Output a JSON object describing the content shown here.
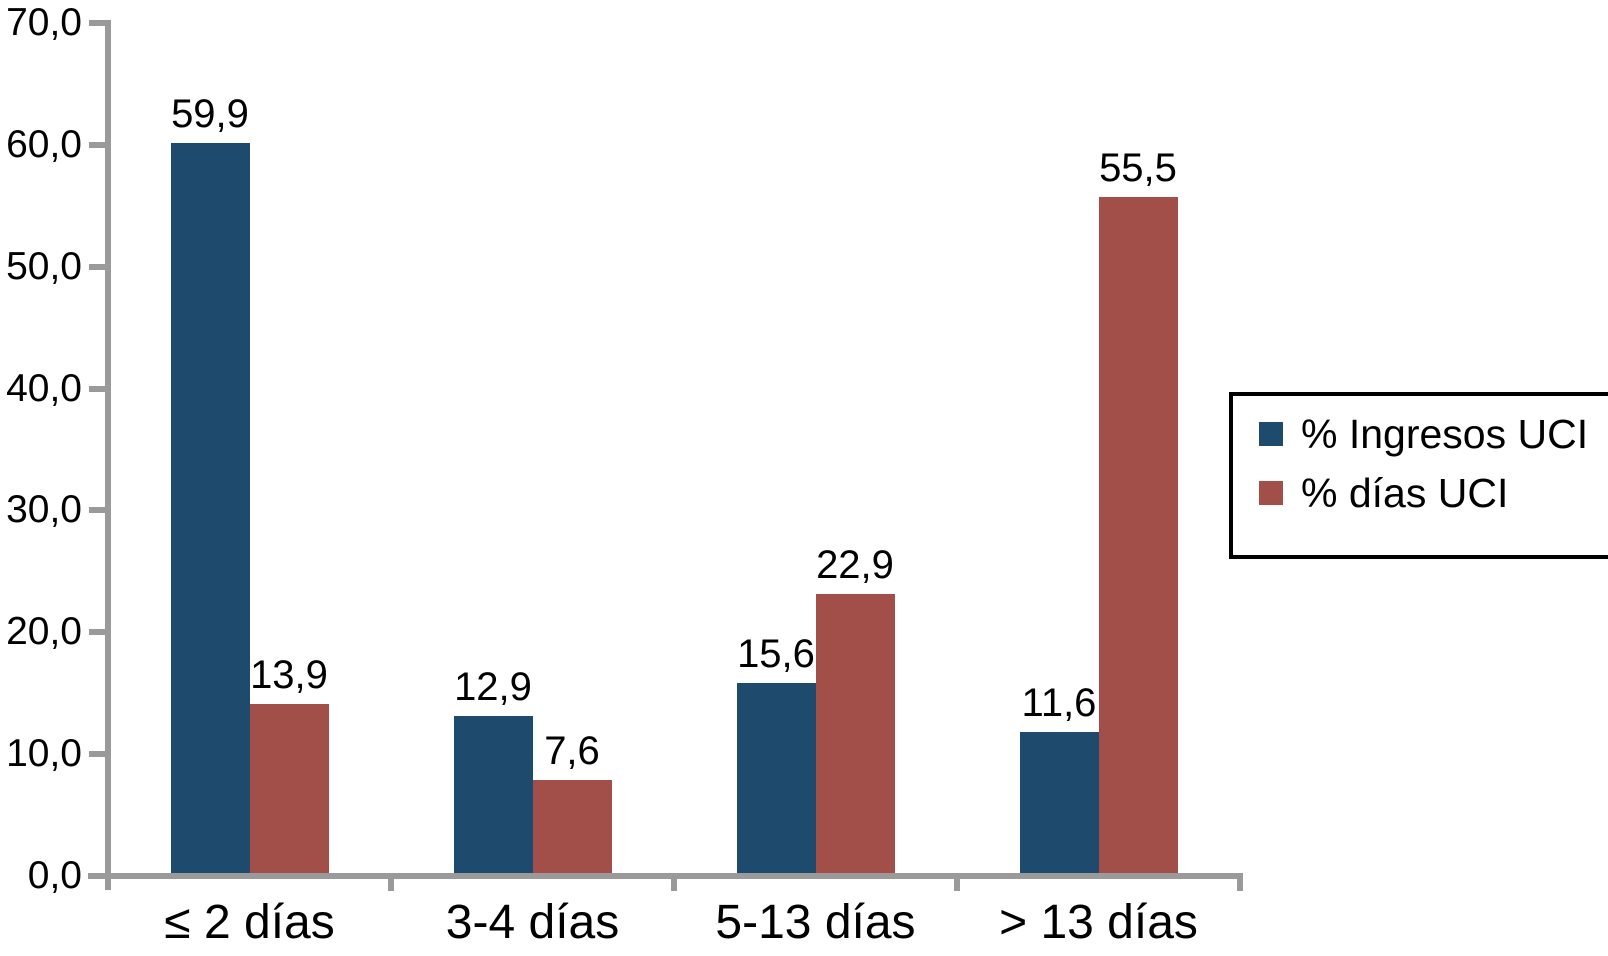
{
  "chart_data": {
    "type": "bar",
    "title": "",
    "xlabel": "",
    "ylabel": "",
    "categories": [
      "≤ 2 días",
      "3-4 días",
      "5-13 días",
      "> 13 días"
    ],
    "series": [
      {
        "name": "% Ingresos UCI",
        "color": "#1E4A6E",
        "values": [
          59.9,
          12.9,
          15.6,
          11.6
        ],
        "value_labels": [
          "59,9",
          "12,9",
          "15,6",
          "11,6"
        ]
      },
      {
        "name": "% días UCI",
        "color": "#A24F4A",
        "values": [
          13.9,
          7.6,
          22.9,
          55.5
        ],
        "value_labels": [
          "13,9",
          "7,6",
          "22,9",
          "55,5"
        ]
      }
    ],
    "ylim": [
      0,
      70
    ],
    "ytick_values": [
      0,
      10,
      20,
      30,
      40,
      50,
      60,
      70
    ],
    "ytick_labels": [
      "0,0",
      "10,0",
      "20,0",
      "30,0",
      "40,0",
      "50,0",
      "60,0",
      "70,0"
    ],
    "decimal_separator": ",",
    "grid": false,
    "legend_position": "right"
  },
  "style": {
    "bar_blue": "#1E4A6E",
    "bar_red": "#A24F4A",
    "axis_color": "#9A9A9A",
    "text_color": "#000000",
    "background": "#FFFFFF",
    "legend_border": "#000000"
  }
}
